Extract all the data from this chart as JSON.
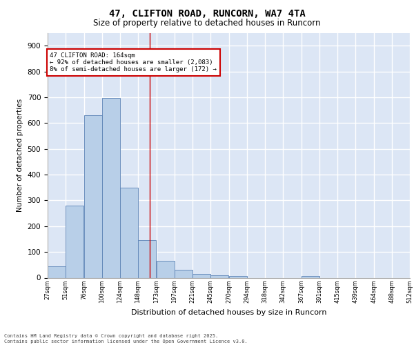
{
  "title": "47, CLIFTON ROAD, RUNCORN, WA7 4TA",
  "subtitle": "Size of property relative to detached houses in Runcorn",
  "xlabel": "Distribution of detached houses by size in Runcorn",
  "ylabel": "Number of detached properties",
  "background_color": "#dce6f5",
  "bar_color": "#b8cfe8",
  "bar_edge_color": "#5b82b5",
  "grid_color": "#ffffff",
  "annotation_line_color": "#cc0000",
  "annotation_box_color": "#cc0000",
  "annotation_text": "47 CLIFTON ROAD: 164sqm\n← 92% of detached houses are smaller (2,083)\n8% of semi-detached houses are larger (172) →",
  "footer_text": "Contains HM Land Registry data © Crown copyright and database right 2025.\nContains public sector information licensed under the Open Government Licence v3.0.",
  "bins": [
    27,
    51,
    76,
    100,
    124,
    148,
    173,
    197,
    221,
    245,
    270,
    294,
    318,
    342,
    367,
    391,
    415,
    439,
    464,
    488,
    512
  ],
  "counts": [
    43,
    280,
    630,
    698,
    350,
    145,
    65,
    32,
    15,
    10,
    8,
    0,
    0,
    0,
    7,
    0,
    0,
    0,
    0,
    0
  ],
  "property_size": 164,
  "ylim": [
    0,
    950
  ],
  "yticks": [
    0,
    100,
    200,
    300,
    400,
    500,
    600,
    700,
    800,
    900
  ]
}
